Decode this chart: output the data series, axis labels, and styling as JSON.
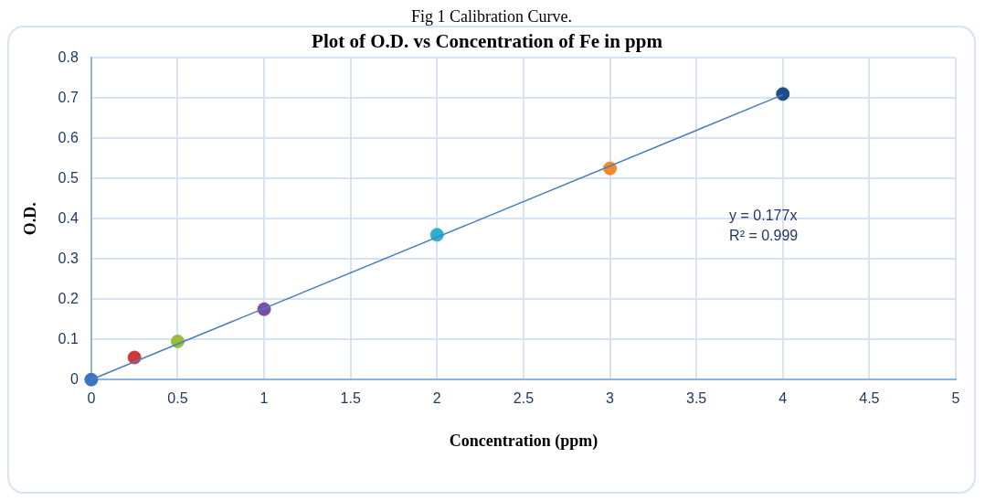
{
  "chart_data": {
    "type": "scatter",
    "title": "Plot of O.D. vs Concentration of Fe in ppm",
    "xlabel": "Concentration (ppm)",
    "ylabel": "O.D.",
    "annotations": [
      "Fig 1 Calibration Curve.",
      "y = 0.177x",
      "R² = 0.999"
    ],
    "series": [
      {
        "x": [
          0,
          0.25,
          0.5,
          1,
          2,
          3,
          4
        ],
        "values": [
          0,
          0.055,
          0.095,
          0.175,
          0.36,
          0.525,
          0.71
        ],
        "colors": [
          "#3a75c4",
          "#d0383a",
          "#9bbb3b",
          "#7a4fa0",
          "#2fb0cf",
          "#f28a2c",
          "#1f4e86"
        ],
        "marker": "circle"
      },
      {
        "type": "line",
        "x": [
          0,
          4
        ],
        "values": [
          0,
          0.708
        ],
        "color": "#4a7ebb",
        "marker": "none"
      }
    ],
    "xlim": [
      0,
      5
    ],
    "xticks": [
      0,
      0.5,
      1,
      1.5,
      2,
      2.5,
      3,
      3.5,
      4,
      4.5,
      5
    ],
    "ylim": [
      0,
      0.8
    ],
    "yticks": [
      0,
      0.1,
      0.2,
      0.3,
      0.4,
      0.5,
      0.6,
      0.7,
      0.8
    ],
    "grid": true,
    "legend": false
  }
}
